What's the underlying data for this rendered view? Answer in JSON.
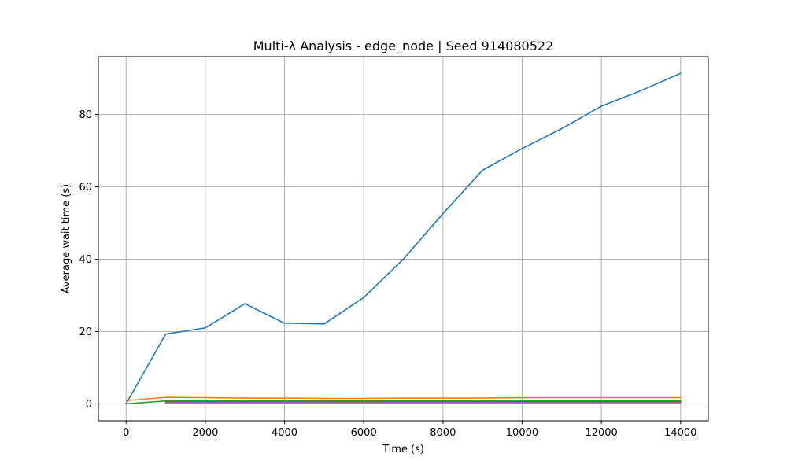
{
  "chart_data": {
    "type": "line",
    "title": "Multi-λ Analysis - edge_node | Seed 914080522",
    "xlabel": "Time (s)",
    "ylabel": "Average wait time (s)",
    "xlim": [
      -700,
      14700
    ],
    "ylim": [
      -4.7,
      96.0
    ],
    "x_ticks": [
      0,
      2000,
      4000,
      6000,
      8000,
      10000,
      12000,
      14000
    ],
    "y_ticks": [
      0,
      20,
      40,
      60,
      80
    ],
    "grid": true,
    "series": [
      {
        "color": "#1f77b4",
        "x": [
          0,
          1000,
          2000,
          3000,
          4000,
          5000,
          6000,
          7000,
          8000,
          9000,
          10000,
          11000,
          12000,
          13000,
          14000
        ],
        "y": [
          0.0,
          19.3,
          21.0,
          27.7,
          22.3,
          22.1,
          29.4,
          40.0,
          52.6,
          64.6,
          70.6,
          76.1,
          82.3,
          86.6,
          91.4
        ]
      },
      {
        "color": "#ff7f0e",
        "x": [
          0,
          1000,
          2000,
          3000,
          4000,
          5000,
          6000,
          7000,
          8000,
          9000,
          10000,
          11000,
          12000,
          13000,
          14000
        ],
        "y": [
          0.9,
          1.8,
          1.7,
          1.6,
          1.6,
          1.5,
          1.5,
          1.6,
          1.6,
          1.6,
          1.7,
          1.7,
          1.7,
          1.7,
          1.7
        ]
      },
      {
        "color": "#2ca02c",
        "x": [
          0,
          1000,
          2000,
          3000,
          4000,
          5000,
          6000,
          7000,
          8000,
          9000,
          10000,
          11000,
          12000,
          13000,
          14000
        ],
        "y": [
          0.0,
          0.8,
          0.8,
          0.8,
          0.8,
          0.8,
          0.8,
          0.8,
          0.8,
          0.8,
          0.8,
          0.8,
          0.8,
          0.8,
          0.8
        ]
      },
      {
        "color": "#d62728",
        "x": [
          1000,
          2000,
          3000,
          4000,
          5000,
          6000,
          7000,
          8000,
          9000,
          10000,
          11000,
          12000,
          13000,
          14000
        ],
        "y": [
          0.7,
          0.7,
          0.7,
          0.7,
          0.7,
          0.7,
          0.7,
          0.7,
          0.7,
          0.7,
          0.7,
          0.7,
          0.7,
          0.7
        ]
      },
      {
        "color": "#9467bd",
        "x": [
          1000,
          2000,
          3000,
          4000,
          5000,
          6000,
          7000,
          8000,
          9000,
          10000,
          11000,
          12000,
          13000,
          14000
        ],
        "y": [
          0.5,
          0.5,
          0.5,
          0.5,
          0.5,
          0.5,
          0.5,
          0.5,
          0.5,
          0.5,
          0.5,
          0.5,
          0.5,
          0.5
        ]
      },
      {
        "color": "#8c564b",
        "x": [
          1000,
          2000,
          3000,
          4000,
          5000,
          6000,
          7000,
          8000,
          9000,
          10000,
          11000,
          12000,
          13000,
          14000
        ],
        "y": [
          0.4,
          0.4,
          0.4,
          0.4,
          0.4,
          0.4,
          0.4,
          0.4,
          0.4,
          0.4,
          0.4,
          0.4,
          0.4,
          0.4
        ]
      },
      {
        "color": "#7f7f7f",
        "x": [
          1000,
          2000,
          3000,
          4000,
          5000,
          6000,
          7000,
          8000,
          9000,
          10000,
          11000,
          12000,
          13000,
          14000
        ],
        "y": [
          0.3,
          0.3,
          0.3,
          0.3,
          0.3,
          0.3,
          0.3,
          0.3,
          0.3,
          0.3,
          0.3,
          0.3,
          0.3,
          0.3
        ]
      }
    ]
  }
}
